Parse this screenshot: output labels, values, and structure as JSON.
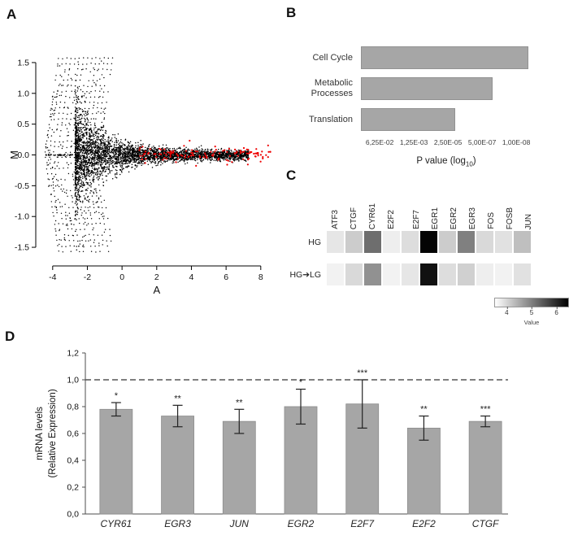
{
  "panels": {
    "a": {
      "label": "A"
    },
    "b": {
      "label": "B"
    },
    "c": {
      "label": "C"
    },
    "d": {
      "label": "D"
    }
  },
  "chart_data": [
    {
      "id": "ma_plot",
      "type": "scatter",
      "xlabel": "A",
      "ylabel": "M",
      "xlim": [
        -4.6,
        8.9
      ],
      "ylim": [
        -1.75,
        1.75
      ],
      "x_ticks": [
        "-4",
        "-2",
        "0",
        "2",
        "4",
        "6",
        "8"
      ],
      "y_ticks": [
        "1.5",
        "1.0",
        "0.5",
        "0.0",
        "-0.5",
        "-1.0",
        "-1.5"
      ],
      "point_color": "#000000",
      "highlight_color": "#ee0000",
      "description": "MA plot: black point cloud fans out along discrete diagonal lattice lines at low A (A < -1, |M| up to 1.5), condenses into a dense horizontal band near M = 0 for A between -2 and 7; red significant points lie near M = 0 for A between 1 and 8.6",
      "generation": {
        "seed": 42,
        "fan_lines": 14,
        "fan_start": -4.45,
        "fan_spacing": 0.24,
        "fan_slope": 2,
        "fan_extra_points": 220,
        "zero_line_points": 60,
        "cloud_points": 3600,
        "cloud_a_min": -2.7,
        "cloud_a_span": 10.0,
        "cloud_exponent": 1.7,
        "red_points": 130,
        "red_a_min": 1.0,
        "red_a_span": 7.55,
        "red_sd": 0.07,
        "red_outlier": [
          8.55,
          0.05
        ]
      }
    },
    {
      "id": "go_enrichment",
      "type": "bar",
      "orientation": "horizontal",
      "categories": [
        "Cell Cycle",
        "Metabolic Processes",
        "Translation"
      ],
      "values_axis_fraction": [
        0.98,
        0.77,
        0.55
      ],
      "approx_p_values": [
        "~1E-08",
        "~4E-07",
        "~2E-05"
      ],
      "x_tick_labels": [
        "6,25E-02",
        "1,25E-03",
        "2,50E-05",
        "5,00E-07",
        "1,00E-08"
      ],
      "xlabel_prefix": "P value (log",
      "xlabel_sub": "10",
      "xlabel_suffix": ")",
      "bar_color": "#a6a6a6"
    },
    {
      "id": "heatmap",
      "type": "heatmap",
      "columns": [
        "ATF3",
        "CTGF",
        "CYR61",
        "E2F2",
        "E2F7",
        "EGR1",
        "EGR2",
        "EGR3",
        "FOS",
        "FOSB",
        "JUN"
      ],
      "gap_after_index": 3,
      "rows": [
        "HG",
        "HG➔LG"
      ],
      "values": [
        [
          3.8,
          4.1,
          5.2,
          3.7,
          3.9,
          6.45,
          4.1,
          5.0,
          3.95,
          3.85,
          4.25
        ],
        [
          3.65,
          3.95,
          4.8,
          3.65,
          3.8,
          6.3,
          3.9,
          4.05,
          3.7,
          3.65,
          3.85
        ]
      ],
      "scale": {
        "min": 3.5,
        "max": 6.5,
        "ticks": [
          4,
          5,
          6
        ],
        "label": "Value",
        "low_color": "#ffffff",
        "high_color": "#000000"
      }
    },
    {
      "id": "qpcr",
      "type": "bar",
      "categories": [
        "CYR61",
        "EGR3",
        "JUN",
        "EGR2",
        "E2F7",
        "E2F2",
        "CTGF"
      ],
      "values": [
        0.78,
        0.73,
        0.69,
        0.8,
        0.82,
        0.64,
        0.69
      ],
      "errors": [
        0.05,
        0.08,
        0.09,
        0.13,
        0.18,
        0.09,
        0.04
      ],
      "significance": [
        "*",
        "**",
        "**",
        "*",
        "***",
        "**",
        "***"
      ],
      "ylabel_lines": [
        "mRNA levels",
        "(Relative Expression)"
      ],
      "y_tick_labels": [
        "0,0",
        "0,2",
        "0,4",
        "0,6",
        "0,8",
        "1,0",
        "1,2"
      ],
      "ylim": [
        0,
        1.2
      ],
      "y_step": 0.2,
      "reference_line": 1.0,
      "bar_color": "#a6a6a6"
    }
  ]
}
